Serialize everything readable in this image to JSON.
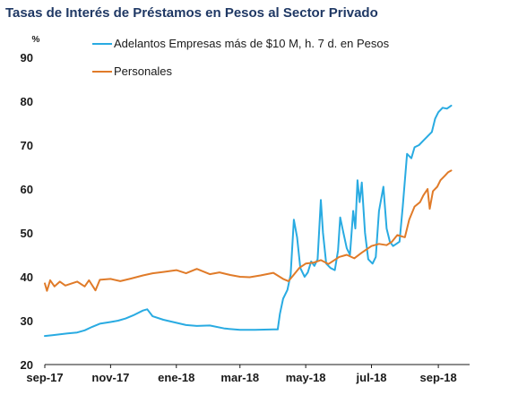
{
  "chart_data": {
    "type": "line",
    "title": "Tasas de Interés de Préstamos en Pesos al Sector Privado",
    "ylabel": "%",
    "xlabel": "",
    "ylim": [
      20,
      90
    ],
    "y_ticks": [
      "20",
      "30",
      "40",
      "50",
      "60",
      "70",
      "80",
      "90"
    ],
    "x_range": [
      "2017-09-01",
      "2018-09-30"
    ],
    "x_ticks": [
      {
        "label": "sep-17",
        "date": "2017-09-01"
      },
      {
        "label": "nov-17",
        "date": "2017-11-01"
      },
      {
        "label": "ene-18",
        "date": "2018-01-01"
      },
      {
        "label": "mar-18",
        "date": "2018-03-01"
      },
      {
        "label": "may-18",
        "date": "2018-05-01"
      },
      {
        "label": "jul-18",
        "date": "2018-07-01"
      },
      {
        "label": "sep-18",
        "date": "2018-09-01"
      }
    ],
    "legend_position": "top-left",
    "grid": false,
    "series": [
      {
        "name": "Adelantos Empresas más de $10 M, h. 7 d. en Pesos",
        "color": "#29abe2",
        "points": [
          [
            "2017-09-01",
            26.5
          ],
          [
            "2017-09-08",
            26.7
          ],
          [
            "2017-09-15",
            26.9
          ],
          [
            "2017-09-22",
            27.1
          ],
          [
            "2017-10-01",
            27.3
          ],
          [
            "2017-10-08",
            27.8
          ],
          [
            "2017-10-15",
            28.6
          ],
          [
            "2017-10-22",
            29.3
          ],
          [
            "2017-11-01",
            29.7
          ],
          [
            "2017-11-08",
            30.0
          ],
          [
            "2017-11-15",
            30.5
          ],
          [
            "2017-11-22",
            31.2
          ],
          [
            "2017-12-01",
            32.3
          ],
          [
            "2017-12-05",
            32.6
          ],
          [
            "2017-12-10",
            31.0
          ],
          [
            "2017-12-20",
            30.2
          ],
          [
            "2018-01-01",
            29.5
          ],
          [
            "2018-01-10",
            29.0
          ],
          [
            "2018-01-20",
            28.8
          ],
          [
            "2018-02-01",
            28.9
          ],
          [
            "2018-02-15",
            28.2
          ],
          [
            "2018-03-01",
            27.9
          ],
          [
            "2018-03-15",
            27.9
          ],
          [
            "2018-04-01",
            28.0
          ],
          [
            "2018-04-05",
            28.0
          ],
          [
            "2018-04-07",
            31.5
          ],
          [
            "2018-04-10",
            35.0
          ],
          [
            "2018-04-14",
            37.0
          ],
          [
            "2018-04-17",
            40.5
          ],
          [
            "2018-04-20",
            53.0
          ],
          [
            "2018-04-23",
            49.0
          ],
          [
            "2018-04-26",
            42.0
          ],
          [
            "2018-04-30",
            40.0
          ],
          [
            "2018-05-03",
            41.0
          ],
          [
            "2018-05-06",
            43.5
          ],
          [
            "2018-05-09",
            42.5
          ],
          [
            "2018-05-12",
            44.0
          ],
          [
            "2018-05-15",
            57.5
          ],
          [
            "2018-05-17",
            50.0
          ],
          [
            "2018-05-20",
            43.0
          ],
          [
            "2018-05-24",
            42.0
          ],
          [
            "2018-05-28",
            41.5
          ],
          [
            "2018-05-31",
            46.0
          ],
          [
            "2018-06-02",
            53.5
          ],
          [
            "2018-06-05",
            50.0
          ],
          [
            "2018-06-08",
            46.5
          ],
          [
            "2018-06-11",
            45.0
          ],
          [
            "2018-06-14",
            55.0
          ],
          [
            "2018-06-16",
            51.0
          ],
          [
            "2018-06-18",
            62.0
          ],
          [
            "2018-06-20",
            57.0
          ],
          [
            "2018-06-22",
            61.5
          ],
          [
            "2018-06-25",
            50.0
          ],
          [
            "2018-06-28",
            44.0
          ],
          [
            "2018-07-02",
            43.0
          ],
          [
            "2018-07-05",
            44.5
          ],
          [
            "2018-07-08",
            55.0
          ],
          [
            "2018-07-12",
            60.5
          ],
          [
            "2018-07-15",
            51.0
          ],
          [
            "2018-07-18",
            48.0
          ],
          [
            "2018-07-21",
            47.0
          ],
          [
            "2018-07-24",
            47.5
          ],
          [
            "2018-07-27",
            48.0
          ],
          [
            "2018-07-30",
            56.0
          ],
          [
            "2018-08-03",
            68.0
          ],
          [
            "2018-08-07",
            67.0
          ],
          [
            "2018-08-10",
            69.5
          ],
          [
            "2018-08-14",
            70.0
          ],
          [
            "2018-08-18",
            71.0
          ],
          [
            "2018-08-22",
            72.0
          ],
          [
            "2018-08-26",
            73.0
          ],
          [
            "2018-08-29",
            76.0
          ],
          [
            "2018-09-01",
            77.5
          ],
          [
            "2018-09-05",
            78.5
          ],
          [
            "2018-09-09",
            78.3
          ],
          [
            "2018-09-13",
            79.0
          ]
        ]
      },
      {
        "name": "Personales",
        "color": "#e07b29",
        "points": [
          [
            "2017-09-01",
            38.5
          ],
          [
            "2017-09-03",
            36.8
          ],
          [
            "2017-09-06",
            39.2
          ],
          [
            "2017-09-10",
            37.8
          ],
          [
            "2017-09-15",
            38.9
          ],
          [
            "2017-09-20",
            38.0
          ],
          [
            "2017-09-25",
            38.4
          ],
          [
            "2017-10-01",
            38.9
          ],
          [
            "2017-10-08",
            37.8
          ],
          [
            "2017-10-12",
            39.2
          ],
          [
            "2017-10-18",
            36.9
          ],
          [
            "2017-10-22",
            39.3
          ],
          [
            "2017-11-01",
            39.5
          ],
          [
            "2017-11-10",
            39.0
          ],
          [
            "2017-11-20",
            39.6
          ],
          [
            "2017-12-01",
            40.3
          ],
          [
            "2017-12-10",
            40.8
          ],
          [
            "2017-12-20",
            41.1
          ],
          [
            "2018-01-01",
            41.5
          ],
          [
            "2018-01-10",
            40.8
          ],
          [
            "2018-01-20",
            41.8
          ],
          [
            "2018-02-01",
            40.6
          ],
          [
            "2018-02-10",
            41.0
          ],
          [
            "2018-02-20",
            40.4
          ],
          [
            "2018-03-01",
            40.0
          ],
          [
            "2018-03-10",
            39.9
          ],
          [
            "2018-03-20",
            40.3
          ],
          [
            "2018-04-01",
            40.9
          ],
          [
            "2018-04-10",
            39.5
          ],
          [
            "2018-04-15",
            39.0
          ],
          [
            "2018-04-20",
            40.5
          ],
          [
            "2018-04-25",
            42.0
          ],
          [
            "2018-05-01",
            43.0
          ],
          [
            "2018-05-08",
            43.2
          ],
          [
            "2018-05-15",
            43.8
          ],
          [
            "2018-05-22",
            42.9
          ],
          [
            "2018-06-01",
            44.5
          ],
          [
            "2018-06-08",
            45.0
          ],
          [
            "2018-06-15",
            44.2
          ],
          [
            "2018-06-22",
            45.5
          ],
          [
            "2018-07-01",
            47.0
          ],
          [
            "2018-07-08",
            47.5
          ],
          [
            "2018-07-15",
            47.2
          ],
          [
            "2018-07-20",
            48.0
          ],
          [
            "2018-07-25",
            49.5
          ],
          [
            "2018-08-01",
            49.0
          ],
          [
            "2018-08-05",
            53.0
          ],
          [
            "2018-08-10",
            56.0
          ],
          [
            "2018-08-15",
            57.0
          ],
          [
            "2018-08-18",
            58.5
          ],
          [
            "2018-08-22",
            60.0
          ],
          [
            "2018-08-24",
            55.5
          ],
          [
            "2018-08-27",
            59.5
          ],
          [
            "2018-08-31",
            60.5
          ],
          [
            "2018-09-03",
            62.0
          ],
          [
            "2018-09-07",
            63.0
          ],
          [
            "2018-09-10",
            63.8
          ],
          [
            "2018-09-13",
            64.2
          ]
        ]
      }
    ]
  }
}
